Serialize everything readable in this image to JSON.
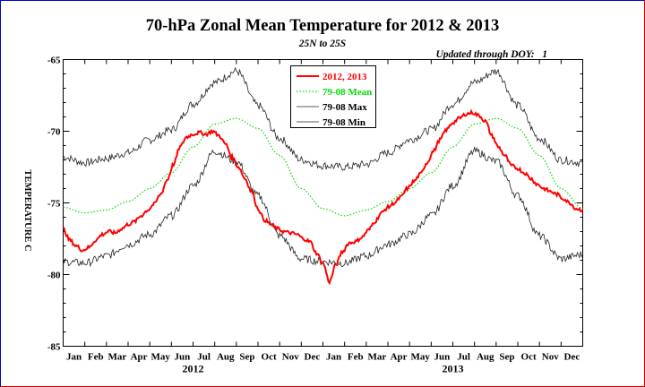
{
  "chart_data": {
    "type": "line",
    "title": "70-hPa Zonal Mean Temperature for 2012 & 2013",
    "subtitle": "25N to 25S",
    "status_text": "Updated through DOY:   1",
    "ylabel": "TEMPERATURE C",
    "ylim": [
      -85,
      -65
    ],
    "yticks": [
      -85,
      -80,
      -75,
      -70,
      -65
    ],
    "ytick_labels": [
      "-85",
      "-80",
      "-75",
      "-70",
      "-65"
    ],
    "xlim": [
      0,
      24
    ],
    "months": [
      "Jan",
      "Feb",
      "Mar",
      "Apr",
      "May",
      "Jun",
      "Jul",
      "Aug",
      "Sep",
      "Oct",
      "Nov",
      "Dec",
      "Jan",
      "Feb",
      "Mar",
      "Apr",
      "May",
      "Jun",
      "Jul",
      "Aug",
      "Sep",
      "Oct",
      "Nov",
      "Dec"
    ],
    "year_labels": [
      {
        "text": "2012",
        "at_month": 6
      },
      {
        "text": "2013",
        "at_month": 18
      }
    ],
    "grid": false,
    "legend_position": "top-center",
    "series": [
      {
        "name": "2012, 2013",
        "color": "#ff0000",
        "style": "solid-thick",
        "x": [
          0.0,
          0.3,
          0.6,
          0.9,
          1.2,
          1.5,
          1.8,
          2.1,
          2.4,
          2.7,
          3.0,
          3.3,
          3.6,
          3.9,
          4.2,
          4.5,
          4.8,
          5.1,
          5.4,
          5.7,
          6.0,
          6.3,
          6.6,
          6.9,
          7.2,
          7.5,
          7.8,
          8.1,
          8.4,
          8.7,
          9.0,
          9.3,
          9.6,
          9.9,
          10.2,
          10.5,
          10.8,
          11.1,
          11.4,
          11.7,
          12.0,
          12.3,
          12.6,
          12.9,
          13.2,
          13.5,
          13.8,
          14.1,
          14.4,
          14.7,
          15.0,
          15.3,
          15.6,
          15.9,
          16.2,
          16.5,
          16.8,
          17.1,
          17.4,
          17.7,
          18.0,
          18.3,
          18.6,
          18.9,
          19.2,
          19.5,
          19.8,
          20.1,
          20.4,
          20.7,
          21.0,
          21.3,
          21.6,
          21.9,
          22.2,
          22.5,
          22.8,
          23.1,
          23.4,
          23.7,
          24.0
        ],
        "values": [
          -76.8,
          -77.6,
          -78.0,
          -78.3,
          -78.1,
          -77.6,
          -77.2,
          -77.0,
          -77.1,
          -76.8,
          -76.5,
          -76.3,
          -75.9,
          -75.5,
          -75.1,
          -74.4,
          -73.4,
          -72.3,
          -71.1,
          -70.4,
          -70.2,
          -70.1,
          -70.2,
          -70.0,
          -70.3,
          -70.9,
          -71.8,
          -72.5,
          -73.3,
          -74.2,
          -75.4,
          -76.2,
          -76.5,
          -76.8,
          -77.0,
          -77.1,
          -77.2,
          -77.5,
          -77.7,
          -78.5,
          -79.2,
          -80.5,
          -79.3,
          -78.4,
          -77.8,
          -77.7,
          -77.4,
          -76.9,
          -76.3,
          -75.7,
          -75.3,
          -75.0,
          -74.6,
          -74.0,
          -73.5,
          -73.0,
          -72.2,
          -71.4,
          -70.6,
          -69.9,
          -69.4,
          -69.1,
          -68.8,
          -68.7,
          -68.9,
          -69.3,
          -70.3,
          -71.1,
          -71.7,
          -72.4,
          -72.6,
          -72.9,
          -73.3,
          -73.7,
          -74.0,
          -74.2,
          -74.4,
          -74.7,
          -75.0,
          -75.4,
          -75.5
        ]
      },
      {
        "name": "79-08 Mean",
        "color": "#00dd00",
        "style": "dotted",
        "x": [
          0,
          1,
          2,
          3,
          4,
          5,
          6,
          7,
          8,
          9,
          10,
          11,
          12,
          13,
          14,
          15,
          16,
          17,
          18,
          19,
          20,
          21,
          22,
          23,
          24
        ],
        "values": [
          -75.3,
          -75.7,
          -75.5,
          -74.9,
          -74.0,
          -72.9,
          -71.1,
          -69.5,
          -69.1,
          -69.8,
          -71.7,
          -74.0,
          -75.4,
          -75.9,
          -75.5,
          -74.9,
          -74.0,
          -72.9,
          -71.1,
          -69.5,
          -69.1,
          -69.8,
          -71.7,
          -74.0,
          -75.4
        ]
      },
      {
        "name": "79-08 Max",
        "color": "#222222",
        "style": "solid-thin",
        "x": [
          0,
          1,
          2,
          3,
          4,
          5,
          6,
          7,
          8,
          9,
          10,
          11,
          12,
          13,
          14,
          15,
          16,
          17,
          18,
          19,
          20,
          21,
          22,
          23,
          24
        ],
        "values": [
          -71.8,
          -72.2,
          -71.9,
          -71.5,
          -70.6,
          -69.9,
          -68.1,
          -66.6,
          -65.8,
          -68.2,
          -70.5,
          -72.0,
          -72.4,
          -72.5,
          -72.3,
          -71.5,
          -70.6,
          -69.9,
          -68.1,
          -66.6,
          -65.8,
          -68.2,
          -70.5,
          -72.0,
          -72.2
        ]
      },
      {
        "name": "79-08 Min",
        "color": "#222222",
        "style": "solid-thin",
        "x": [
          0,
          1,
          2,
          3,
          4,
          5,
          6,
          7,
          8,
          9,
          10,
          11,
          12,
          13,
          14,
          15,
          16,
          17,
          18,
          19,
          20,
          21,
          22,
          23,
          24
        ],
        "values": [
          -79.1,
          -79.2,
          -78.7,
          -77.9,
          -77.2,
          -75.9,
          -73.8,
          -71.4,
          -72.1,
          -74.5,
          -77.3,
          -78.9,
          -79.1,
          -79.2,
          -78.7,
          -77.9,
          -77.2,
          -75.9,
          -73.8,
          -71.4,
          -72.1,
          -74.5,
          -77.3,
          -78.9,
          -78.6
        ]
      }
    ]
  }
}
